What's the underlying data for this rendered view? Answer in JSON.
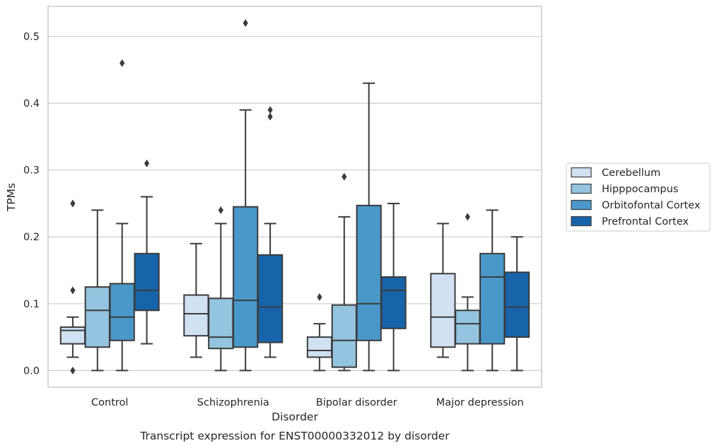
{
  "chart_data": {
    "type": "box",
    "caption": "Transcript expression for ENST00000332012 by disorder",
    "xlabel": "Disorder",
    "ylabel": "TPMs",
    "ylim": [
      -0.025,
      0.545
    ],
    "yticks": [
      0.0,
      0.1,
      0.2,
      0.3,
      0.4,
      0.5
    ],
    "ytick_labels": [
      "0.0",
      "0.1",
      "0.2",
      "0.3",
      "0.4",
      "0.5"
    ],
    "grid": "horizontal",
    "legend_position": "right",
    "categories": [
      "Control",
      "Schizophrenia",
      "Bipolar disorder",
      "Major depression"
    ],
    "series": [
      {
        "name": "Cerebellum",
        "color": "#d0e1f2",
        "boxes": [
          {
            "whislo": 0.02,
            "q1": 0.04,
            "med": 0.06,
            "q3": 0.065,
            "whishi": 0.08,
            "fliers": [
              0.0,
              0.12,
              0.25
            ]
          },
          {
            "whislo": 0.02,
            "q1": 0.052,
            "med": 0.085,
            "q3": 0.113,
            "whishi": 0.19,
            "fliers": []
          },
          {
            "whislo": 0.0,
            "q1": 0.02,
            "med": 0.03,
            "q3": 0.05,
            "whishi": 0.07,
            "fliers": [
              0.11
            ]
          },
          {
            "whislo": 0.02,
            "q1": 0.035,
            "med": 0.08,
            "q3": 0.145,
            "whishi": 0.22,
            "fliers": []
          }
        ]
      },
      {
        "name": "Hipppocampus",
        "color": "#94c4df",
        "boxes": [
          {
            "whislo": 0.0,
            "q1": 0.035,
            "med": 0.09,
            "q3": 0.125,
            "whishi": 0.24,
            "fliers": []
          },
          {
            "whislo": 0.0,
            "q1": 0.033,
            "med": 0.05,
            "q3": 0.108,
            "whishi": 0.22,
            "fliers": [
              0.24
            ]
          },
          {
            "whislo": 0.0,
            "q1": 0.005,
            "med": 0.045,
            "q3": 0.098,
            "whishi": 0.23,
            "fliers": [
              0.29
            ]
          },
          {
            "whislo": 0.0,
            "q1": 0.04,
            "med": 0.07,
            "q3": 0.09,
            "whishi": 0.11,
            "fliers": [
              0.23
            ]
          }
        ]
      },
      {
        "name": "Orbitofontal Cortex",
        "color": "#4a98c9",
        "boxes": [
          {
            "whislo": 0.0,
            "q1": 0.045,
            "med": 0.08,
            "q3": 0.13,
            "whishi": 0.22,
            "fliers": [
              0.46
            ]
          },
          {
            "whislo": 0.0,
            "q1": 0.035,
            "med": 0.105,
            "q3": 0.245,
            "whishi": 0.39,
            "fliers": [
              0.52
            ]
          },
          {
            "whislo": 0.0,
            "q1": 0.045,
            "med": 0.1,
            "q3": 0.247,
            "whishi": 0.43,
            "fliers": []
          },
          {
            "whislo": 0.0,
            "q1": 0.04,
            "med": 0.14,
            "q3": 0.175,
            "whishi": 0.24,
            "fliers": []
          }
        ]
      },
      {
        "name": "Prefrontal Cortex",
        "color": "#1764ab",
        "boxes": [
          {
            "whislo": 0.04,
            "q1": 0.09,
            "med": 0.12,
            "q3": 0.175,
            "whishi": 0.26,
            "fliers": [
              0.31
            ]
          },
          {
            "whislo": 0.02,
            "q1": 0.042,
            "med": 0.095,
            "q3": 0.173,
            "whishi": 0.22,
            "fliers": [
              0.38,
              0.39
            ]
          },
          {
            "whislo": 0.0,
            "q1": 0.063,
            "med": 0.12,
            "q3": 0.14,
            "whishi": 0.25,
            "fliers": []
          },
          {
            "whislo": 0.0,
            "q1": 0.05,
            "med": 0.095,
            "q3": 0.147,
            "whishi": 0.2,
            "fliers": []
          }
        ]
      }
    ]
  }
}
